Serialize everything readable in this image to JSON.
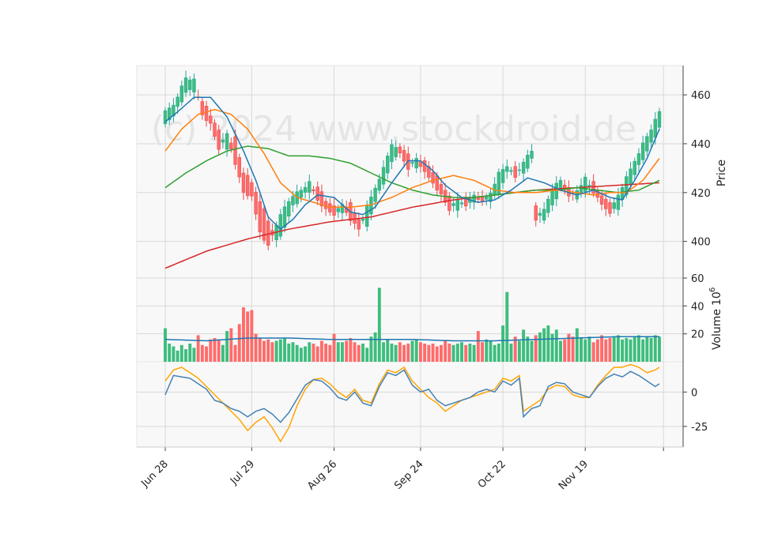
{
  "watermark": "(c) 2024 www.stockdroid.de",
  "colors": {
    "up": "#26a69a",
    "up_fill": "#3dbd7d",
    "down": "#e84a4a",
    "down_fill": "#ff6b6b",
    "ma1": "#1f77b4",
    "ma2": "#ff7f0e",
    "ma3": "#2ca02c",
    "ma4": "#d62728",
    "osc1": "#4682b4",
    "osc2": "#ffa500",
    "panel_bg": "#f8f8f8",
    "grid": "#d9d9d9"
  },
  "chart_data": {
    "type": "candlestick",
    "x_ticks": [
      "Jun 28",
      "Jul 29",
      "Aug 26",
      "Sep 24",
      "Oct 22",
      "Nov 19",
      ""
    ],
    "x_tick_index": [
      0,
      21,
      41,
      62,
      82,
      102,
      121
    ],
    "n_bars": 121,
    "price_panel": {
      "ylabel": "Price",
      "ylim": [
        385,
        472
      ],
      "yticks": [
        400,
        420,
        440,
        460
      ],
      "ohlc_anchors": [
        [
          0,
          449,
          453
        ],
        [
          2,
          451,
          456
        ],
        [
          5,
          461,
          467
        ],
        [
          7,
          462,
          466
        ],
        [
          9,
          457,
          452
        ],
        [
          11,
          452,
          448
        ],
        [
          13,
          445,
          438
        ],
        [
          15,
          438,
          444
        ],
        [
          17,
          442,
          432
        ],
        [
          19,
          428,
          420
        ],
        [
          21,
          425,
          418
        ],
        [
          23,
          416,
          404
        ],
        [
          25,
          409,
          398
        ],
        [
          27,
          400,
          407
        ],
        [
          29,
          406,
          414
        ],
        [
          31,
          414,
          419
        ],
        [
          33,
          418,
          421
        ],
        [
          35,
          421,
          424
        ],
        [
          37,
          422,
          417
        ],
        [
          39,
          417,
          413
        ],
        [
          41,
          414,
          411
        ],
        [
          43,
          412,
          415
        ],
        [
          45,
          415,
          409
        ],
        [
          47,
          409,
          405
        ],
        [
          49,
          407,
          414
        ],
        [
          51,
          416,
          422
        ],
        [
          53,
          424,
          430
        ],
        [
          55,
          432,
          440
        ],
        [
          57,
          439,
          436
        ],
        [
          59,
          435,
          430
        ],
        [
          61,
          430,
          434
        ],
        [
          63,
          434,
          428
        ],
        [
          65,
          428,
          424
        ],
        [
          67,
          424,
          419
        ],
        [
          69,
          418,
          413
        ],
        [
          71,
          413,
          417
        ],
        [
          73,
          417,
          415
        ],
        [
          75,
          416,
          419
        ],
        [
          77,
          419,
          416
        ],
        [
          79,
          416,
          420
        ],
        [
          81,
          420,
          428
        ],
        [
          83,
          428,
          431
        ],
        [
          85,
          431,
          426
        ],
        [
          87,
          427,
          433
        ],
        [
          89,
          434,
          437
        ],
        [
          90,
          414,
          409
        ],
        [
          92,
          409,
          413
        ],
        [
          94,
          414,
          422
        ],
        [
          96,
          422,
          425
        ],
        [
          98,
          423,
          418
        ],
        [
          100,
          417,
          421
        ],
        [
          102,
          421,
          426
        ],
        [
          104,
          424,
          420
        ],
        [
          106,
          419,
          415
        ],
        [
          108,
          415,
          412
        ],
        [
          110,
          413,
          419
        ],
        [
          112,
          420,
          426
        ],
        [
          114,
          427,
          433
        ],
        [
          116,
          434,
          440
        ],
        [
          118,
          440,
          446
        ],
        [
          120,
          447,
          453
        ]
      ],
      "ma_anchors": {
        "ma_short": [
          [
            0,
            449
          ],
          [
            3,
            453
          ],
          [
            7,
            459
          ],
          [
            11,
            459
          ],
          [
            15,
            451
          ],
          [
            19,
            437
          ],
          [
            22,
            425
          ],
          [
            25,
            410
          ],
          [
            28,
            405
          ],
          [
            31,
            409
          ],
          [
            34,
            415
          ],
          [
            37,
            419
          ],
          [
            41,
            418
          ],
          [
            45,
            412
          ],
          [
            48,
            411
          ],
          [
            51,
            414
          ],
          [
            55,
            424
          ],
          [
            59,
            433
          ],
          [
            62,
            433
          ],
          [
            65,
            429
          ],
          [
            68,
            423
          ],
          [
            72,
            418
          ],
          [
            76,
            416
          ],
          [
            80,
            417
          ],
          [
            84,
            421
          ],
          [
            88,
            426
          ],
          [
            92,
            424
          ],
          [
            96,
            421
          ],
          [
            100,
            419
          ],
          [
            104,
            421
          ],
          [
            108,
            418
          ],
          [
            111,
            417
          ],
          [
            114,
            425
          ],
          [
            117,
            434
          ],
          [
            120,
            446
          ]
        ],
        "ma_medium": [
          [
            0,
            437
          ],
          [
            4,
            446
          ],
          [
            8,
            452
          ],
          [
            12,
            454
          ],
          [
            16,
            452
          ],
          [
            20,
            446
          ],
          [
            24,
            436
          ],
          [
            28,
            424
          ],
          [
            32,
            418
          ],
          [
            36,
            416
          ],
          [
            40,
            414
          ],
          [
            45,
            414
          ],
          [
            50,
            415
          ],
          [
            55,
            418
          ],
          [
            60,
            422
          ],
          [
            65,
            425
          ],
          [
            70,
            427
          ],
          [
            75,
            425
          ],
          [
            80,
            421
          ],
          [
            85,
            420
          ],
          [
            90,
            420
          ],
          [
            95,
            421
          ],
          [
            100,
            420
          ],
          [
            104,
            419
          ],
          [
            108,
            420
          ],
          [
            112,
            420
          ],
          [
            116,
            425
          ],
          [
            120,
            434
          ]
        ],
        "ma_long": [
          [
            0,
            422
          ],
          [
            5,
            428
          ],
          [
            10,
            433
          ],
          [
            15,
            437
          ],
          [
            20,
            439
          ],
          [
            25,
            438
          ],
          [
            30,
            435
          ],
          [
            35,
            435
          ],
          [
            40,
            434
          ],
          [
            45,
            432
          ],
          [
            50,
            428
          ],
          [
            55,
            424
          ],
          [
            60,
            421
          ],
          [
            65,
            419
          ],
          [
            70,
            418
          ],
          [
            75,
            418
          ],
          [
            80,
            419
          ],
          [
            85,
            420
          ],
          [
            90,
            421
          ],
          [
            95,
            421
          ],
          [
            100,
            422
          ],
          [
            105,
            421
          ],
          [
            110,
            420
          ],
          [
            115,
            421
          ],
          [
            120,
            425
          ]
        ],
        "ma_200": [
          [
            0,
            389
          ],
          [
            10,
            396
          ],
          [
            20,
            401
          ],
          [
            30,
            405
          ],
          [
            40,
            408
          ],
          [
            50,
            410
          ],
          [
            60,
            414
          ],
          [
            70,
            417
          ],
          [
            80,
            419
          ],
          [
            90,
            421
          ],
          [
            100,
            422
          ],
          [
            110,
            423
          ],
          [
            120,
            424
          ]
        ]
      }
    },
    "volume_panel": {
      "ylabel": "Volume  10^6",
      "ylabel_main": "Volume",
      "ylabel_exp": "10",
      "ylabel_pow": "6",
      "ylim": [
        0,
        60
      ],
      "yticks": [
        20,
        40,
        60
      ],
      "volumes": [
        24,
        13,
        11,
        8,
        12,
        9,
        13,
        10,
        19,
        12,
        11,
        16,
        17,
        16,
        12,
        22,
        24,
        12,
        27,
        39,
        36,
        37,
        20,
        17,
        15,
        16,
        14,
        15,
        16,
        17,
        13,
        14,
        12,
        10,
        11,
        14,
        13,
        11,
        15,
        13,
        12,
        20,
        14,
        14,
        15,
        17,
        14,
        12,
        13,
        10,
        18,
        21,
        53,
        14,
        16,
        13,
        12,
        14,
        12,
        13,
        15,
        16,
        14,
        13,
        12,
        13,
        11,
        12,
        15,
        13,
        12,
        13,
        14,
        12,
        13,
        12,
        22,
        14,
        16,
        15,
        12,
        13,
        26,
        50,
        13,
        18,
        15,
        23,
        18,
        15,
        19,
        21,
        24,
        26,
        20,
        23,
        15,
        16,
        20,
        18,
        24,
        17,
        16,
        18,
        14,
        16,
        19,
        16,
        17,
        18,
        19,
        16,
        17,
        16,
        18,
        19,
        16,
        18,
        17,
        19,
        18
      ],
      "vol_ma_anchors": [
        [
          0,
          16
        ],
        [
          10,
          15
        ],
        [
          20,
          17
        ],
        [
          30,
          17
        ],
        [
          40,
          16
        ],
        [
          50,
          16
        ],
        [
          60,
          16
        ],
        [
          70,
          15
        ],
        [
          80,
          15
        ],
        [
          90,
          16
        ],
        [
          100,
          17
        ],
        [
          110,
          18
        ],
        [
          120,
          18
        ]
      ]
    },
    "oscillator_panel": {
      "ylim": [
        -40,
        22
      ],
      "yticks": [
        -25,
        0
      ],
      "line1_anchors": [
        [
          0,
          -2
        ],
        [
          2,
          12
        ],
        [
          4,
          11
        ],
        [
          6,
          10
        ],
        [
          8,
          6
        ],
        [
          10,
          2
        ],
        [
          12,
          -6
        ],
        [
          14,
          -8
        ],
        [
          16,
          -12
        ],
        [
          18,
          -14
        ],
        [
          20,
          -18
        ],
        [
          22,
          -14
        ],
        [
          24,
          -12
        ],
        [
          26,
          -16
        ],
        [
          28,
          -22
        ],
        [
          30,
          -15
        ],
        [
          32,
          -5
        ],
        [
          34,
          5
        ],
        [
          36,
          9
        ],
        [
          38,
          8
        ],
        [
          40,
          3
        ],
        [
          42,
          -4
        ],
        [
          44,
          -6
        ],
        [
          46,
          0
        ],
        [
          48,
          -8
        ],
        [
          50,
          -10
        ],
        [
          52,
          4
        ],
        [
          54,
          14
        ],
        [
          56,
          12
        ],
        [
          58,
          16
        ],
        [
          60,
          5
        ],
        [
          62,
          0
        ],
        [
          64,
          2
        ],
        [
          66,
          -6
        ],
        [
          68,
          -10
        ],
        [
          70,
          -8
        ],
        [
          72,
          -6
        ],
        [
          74,
          -4
        ],
        [
          76,
          0
        ],
        [
          78,
          2
        ],
        [
          80,
          0
        ],
        [
          82,
          8
        ],
        [
          84,
          5
        ],
        [
          86,
          10
        ],
        [
          87,
          -18
        ],
        [
          89,
          -12
        ],
        [
          91,
          -10
        ],
        [
          93,
          4
        ],
        [
          95,
          7
        ],
        [
          97,
          6
        ],
        [
          99,
          0
        ],
        [
          101,
          -2
        ],
        [
          103,
          -4
        ],
        [
          105,
          4
        ],
        [
          107,
          10
        ],
        [
          109,
          13
        ],
        [
          111,
          11
        ],
        [
          113,
          15
        ],
        [
          115,
          12
        ],
        [
          117,
          8
        ],
        [
          119,
          4
        ],
        [
          120,
          6
        ]
      ],
      "line2_anchors": [
        [
          0,
          8
        ],
        [
          2,
          16
        ],
        [
          4,
          18
        ],
        [
          6,
          14
        ],
        [
          8,
          10
        ],
        [
          10,
          4
        ],
        [
          12,
          -2
        ],
        [
          14,
          -8
        ],
        [
          16,
          -14
        ],
        [
          18,
          -20
        ],
        [
          20,
          -28
        ],
        [
          22,
          -22
        ],
        [
          24,
          -18
        ],
        [
          26,
          -26
        ],
        [
          28,
          -36
        ],
        [
          30,
          -26
        ],
        [
          32,
          -10
        ],
        [
          34,
          2
        ],
        [
          36,
          9
        ],
        [
          38,
          10
        ],
        [
          40,
          6
        ],
        [
          42,
          0
        ],
        [
          44,
          -4
        ],
        [
          46,
          2
        ],
        [
          48,
          -6
        ],
        [
          50,
          -8
        ],
        [
          52,
          6
        ],
        [
          54,
          16
        ],
        [
          56,
          14
        ],
        [
          58,
          18
        ],
        [
          60,
          8
        ],
        [
          62,
          2
        ],
        [
          64,
          -4
        ],
        [
          66,
          -8
        ],
        [
          68,
          -14
        ],
        [
          70,
          -10
        ],
        [
          72,
          -6
        ],
        [
          74,
          -4
        ],
        [
          76,
          -2
        ],
        [
          78,
          0
        ],
        [
          80,
          2
        ],
        [
          82,
          10
        ],
        [
          84,
          8
        ],
        [
          86,
          12
        ],
        [
          87,
          -14
        ],
        [
          89,
          -10
        ],
        [
          91,
          -6
        ],
        [
          93,
          2
        ],
        [
          95,
          5
        ],
        [
          97,
          4
        ],
        [
          99,
          -2
        ],
        [
          101,
          -4
        ],
        [
          103,
          -4
        ],
        [
          105,
          5
        ],
        [
          107,
          12
        ],
        [
          109,
          18
        ],
        [
          111,
          18
        ],
        [
          113,
          20
        ],
        [
          115,
          18
        ],
        [
          117,
          14
        ],
        [
          119,
          16
        ],
        [
          120,
          18
        ]
      ]
    }
  }
}
